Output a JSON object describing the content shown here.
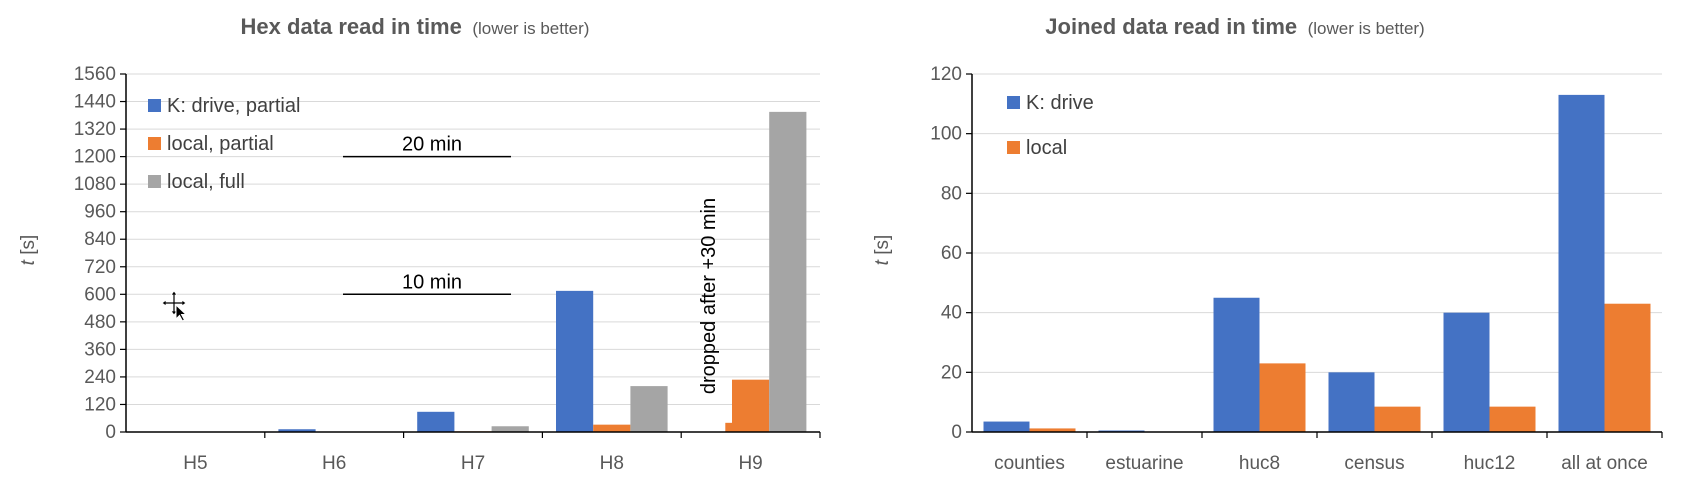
{
  "colors": {
    "blue": "#4472c4",
    "orange": "#ed7d31",
    "gray": "#a5a5a5"
  },
  "chart_data": [
    {
      "type": "bar",
      "title": "Hex data read in time",
      "subtitle": "(lower is better)",
      "ylabel": "t [s]",
      "ylabel_var": "t",
      "ylabel_unit": " [s]",
      "ylim": [
        0,
        1560
      ],
      "yticks": [
        0,
        120,
        240,
        360,
        480,
        600,
        720,
        840,
        960,
        1080,
        1200,
        1320,
        1440,
        1560
      ],
      "grid": true,
      "legend_position": "top-left",
      "categories": [
        "H5",
        "H6",
        "H7",
        "H8",
        "H9"
      ],
      "series": [
        {
          "name": "K: drive, partial",
          "color": "#4472c4",
          "values": [
            2,
            12,
            88,
            615,
            null
          ]
        },
        {
          "name": "local, partial",
          "color": "#ed7d31",
          "values": [
            0.5,
            1,
            3,
            32,
            228
          ]
        },
        {
          "name": "local, full",
          "color": "#a5a5a5",
          "values": [
            1,
            2,
            25,
            200,
            1395
          ]
        }
      ],
      "extra_bars": [
        {
          "category": "H9",
          "series": "K: drive, partial",
          "value": 40,
          "color": "#ed7d31"
        }
      ],
      "annotations": [
        {
          "text": "20 min",
          "value": 1200
        },
        {
          "text": "10 min",
          "value": 600
        },
        {
          "text": "dropped after +30 min",
          "category": "H9",
          "rotated": true
        }
      ]
    },
    {
      "type": "bar",
      "title": "Joined data read in time",
      "subtitle": "(lower is better)",
      "ylabel": "t [s]",
      "ylabel_var": "t",
      "ylabel_unit": " [s]",
      "ylim": [
        0,
        120
      ],
      "yticks": [
        0,
        20,
        40,
        60,
        80,
        100,
        120
      ],
      "grid": true,
      "legend_position": "top-left",
      "categories": [
        "counties",
        "estuarine",
        "huc8",
        "census",
        "huc12",
        "all at once"
      ],
      "series": [
        {
          "name": "K: drive",
          "color": "#4472c4",
          "values": [
            3.5,
            0.5,
            45,
            20,
            40,
            113
          ]
        },
        {
          "name": "local",
          "color": "#ed7d31",
          "values": [
            1.2,
            0.1,
            23,
            8.5,
            8.5,
            43
          ]
        }
      ]
    }
  ]
}
